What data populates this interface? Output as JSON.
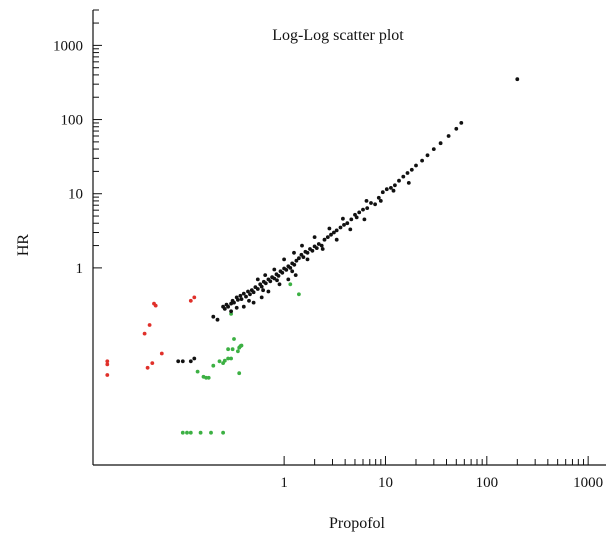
{
  "chart_data": {
    "type": "scatter",
    "title": "Log-Log scatter plot",
    "xlabel": "Propofol",
    "ylabel": "HR",
    "xscale": "log",
    "yscale": "log",
    "xlim": [
      0.013,
      1500
    ],
    "ylim": [
      0.0022,
      3000
    ],
    "xticks": [
      1,
      10,
      100,
      1000
    ],
    "yticks": [
      1,
      10,
      100,
      1000
    ],
    "xtick_labels": [
      "1",
      "10",
      "100",
      "1000"
    ],
    "ytick_labels": [
      "1",
      "10",
      "100",
      "1000"
    ],
    "grid": false,
    "legend": "none",
    "series": [
      {
        "color": "#e0302a",
        "points": [
          [
            0.018,
            0.055
          ],
          [
            0.018,
            0.05
          ],
          [
            0.018,
            0.036
          ],
          [
            0.042,
            0.13
          ],
          [
            0.047,
            0.17
          ],
          [
            0.052,
            0.33
          ],
          [
            0.054,
            0.31
          ],
          [
            0.045,
            0.045
          ],
          [
            0.05,
            0.052
          ],
          [
            0.062,
            0.07
          ],
          [
            0.12,
            0.36
          ],
          [
            0.13,
            0.4
          ]
        ]
      },
      {
        "color": "#3cb043",
        "points": [
          [
            0.1,
            0.006
          ],
          [
            0.11,
            0.006
          ],
          [
            0.12,
            0.006
          ],
          [
            0.15,
            0.006
          ],
          [
            0.19,
            0.006
          ],
          [
            0.25,
            0.006
          ],
          [
            0.14,
            0.04
          ],
          [
            0.16,
            0.034
          ],
          [
            0.17,
            0.033
          ],
          [
            0.18,
            0.033
          ],
          [
            0.2,
            0.048
          ],
          [
            0.23,
            0.055
          ],
          [
            0.25,
            0.052
          ],
          [
            0.26,
            0.056
          ],
          [
            0.28,
            0.06
          ],
          [
            0.3,
            0.06
          ],
          [
            0.31,
            0.08
          ],
          [
            0.35,
            0.075
          ],
          [
            0.36,
            0.084
          ],
          [
            0.37,
            0.088
          ],
          [
            0.38,
            0.09
          ],
          [
            0.28,
            0.08
          ],
          [
            0.3,
            0.24
          ],
          [
            0.32,
            0.11
          ],
          [
            0.36,
            0.038
          ],
          [
            1.15,
            0.6
          ],
          [
            1.4,
            0.44
          ]
        ]
      },
      {
        "color": "#111111",
        "points": [
          [
            0.09,
            0.055
          ],
          [
            0.1,
            0.055
          ],
          [
            0.12,
            0.055
          ],
          [
            0.13,
            0.06
          ],
          [
            0.2,
            0.22
          ],
          [
            0.22,
            0.2
          ],
          [
            0.25,
            0.3
          ],
          [
            0.26,
            0.28
          ],
          [
            0.27,
            0.32
          ],
          [
            0.28,
            0.3
          ],
          [
            0.3,
            0.33
          ],
          [
            0.31,
            0.36
          ],
          [
            0.32,
            0.34
          ],
          [
            0.34,
            0.4
          ],
          [
            0.35,
            0.37
          ],
          [
            0.37,
            0.42
          ],
          [
            0.38,
            0.38
          ],
          [
            0.4,
            0.45
          ],
          [
            0.42,
            0.41
          ],
          [
            0.44,
            0.48
          ],
          [
            0.46,
            0.44
          ],
          [
            0.48,
            0.5
          ],
          [
            0.5,
            0.47
          ],
          [
            0.52,
            0.55
          ],
          [
            0.55,
            0.52
          ],
          [
            0.58,
            0.6
          ],
          [
            0.6,
            0.56
          ],
          [
            0.63,
            0.65
          ],
          [
            0.66,
            0.62
          ],
          [
            0.7,
            0.7
          ],
          [
            0.73,
            0.66
          ],
          [
            0.76,
            0.75
          ],
          [
            0.8,
            0.72
          ],
          [
            0.84,
            0.82
          ],
          [
            0.88,
            0.78
          ],
          [
            0.92,
            0.9
          ],
          [
            0.96,
            0.86
          ],
          [
            1.0,
            0.98
          ],
          [
            1.05,
            0.94
          ],
          [
            1.1,
            1.05
          ],
          [
            1.15,
            1.0
          ],
          [
            1.2,
            1.15
          ],
          [
            1.26,
            1.1
          ],
          [
            1.32,
            1.25
          ],
          [
            1.4,
            1.35
          ],
          [
            1.48,
            1.5
          ],
          [
            1.55,
            1.4
          ],
          [
            1.62,
            1.65
          ],
          [
            1.7,
            1.6
          ],
          [
            1.8,
            1.8
          ],
          [
            1.9,
            1.7
          ],
          [
            2.0,
            1.95
          ],
          [
            2.1,
            1.85
          ],
          [
            2.2,
            2.1
          ],
          [
            2.35,
            2.0
          ],
          [
            2.5,
            2.4
          ],
          [
            2.7,
            2.6
          ],
          [
            2.9,
            2.8
          ],
          [
            3.1,
            3.0
          ],
          [
            3.3,
            3.2
          ],
          [
            3.6,
            3.5
          ],
          [
            3.9,
            3.8
          ],
          [
            4.2,
            4.0
          ],
          [
            4.6,
            4.5
          ],
          [
            5.0,
            5.2
          ],
          [
            5.5,
            5.6
          ],
          [
            6.0,
            6.1
          ],
          [
            6.6,
            6.4
          ],
          [
            7.2,
            7.5
          ],
          [
            7.9,
            7.2
          ],
          [
            8.6,
            8.8
          ],
          [
            9.4,
            10.5
          ],
          [
            10.3,
            11.5
          ],
          [
            11.3,
            12.0
          ],
          [
            12.4,
            13.0
          ],
          [
            13.6,
            15.0
          ],
          [
            15.0,
            17.0
          ],
          [
            16.5,
            19.0
          ],
          [
            18.2,
            21.0
          ],
          [
            20.0,
            24.0
          ],
          [
            23.0,
            28.0
          ],
          [
            26.0,
            33.0
          ],
          [
            30.0,
            40.0
          ],
          [
            35.0,
            48.0
          ],
          [
            42.0,
            60.0
          ],
          [
            50.0,
            75.0
          ],
          [
            56.0,
            90.0
          ],
          [
            200.0,
            350.0
          ],
          [
            0.4,
            0.3
          ],
          [
            0.5,
            0.34
          ],
          [
            0.6,
            0.4
          ],
          [
            0.7,
            0.48
          ],
          [
            0.9,
            0.6
          ],
          [
            1.1,
            0.7
          ],
          [
            1.3,
            0.8
          ],
          [
            0.55,
            0.7
          ],
          [
            0.65,
            0.8
          ],
          [
            0.8,
            0.95
          ],
          [
            1.0,
            1.3
          ],
          [
            1.25,
            1.6
          ],
          [
            1.5,
            2.0
          ],
          [
            2.0,
            2.6
          ],
          [
            2.8,
            3.4
          ],
          [
            3.8,
            4.6
          ],
          [
            5.2,
            4.8
          ],
          [
            6.5,
            8.0
          ],
          [
            9.0,
            8.0
          ],
          [
            12.0,
            11.0
          ],
          [
            17.0,
            14.0
          ],
          [
            0.3,
            0.26
          ],
          [
            0.34,
            0.29
          ],
          [
            0.45,
            0.36
          ],
          [
            0.62,
            0.5
          ],
          [
            0.85,
            0.68
          ],
          [
            1.2,
            0.9
          ],
          [
            1.7,
            1.3
          ],
          [
            2.4,
            1.8
          ],
          [
            3.3,
            2.4
          ],
          [
            4.5,
            3.3
          ],
          [
            6.2,
            4.5
          ]
        ]
      }
    ]
  }
}
